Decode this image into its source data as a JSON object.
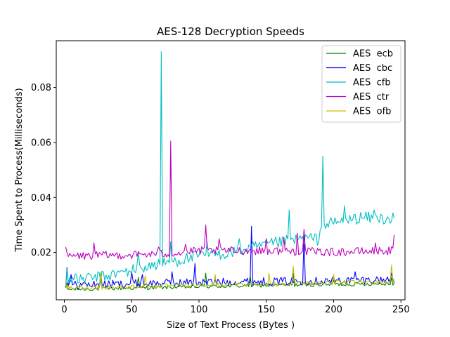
{
  "chart_data": {
    "type": "line",
    "title": "AES-128 Decryption Speeds",
    "xlabel": "Size of Text Process (Bytes )",
    "ylabel": "Time Spent to Process(Milliseconds)",
    "xlim": [
      -6,
      253
    ],
    "ylim": [
      0.0028,
      0.097
    ],
    "xticks": [
      0,
      50,
      100,
      150,
      200,
      250
    ],
    "yticks": [
      0.02,
      0.04,
      0.06,
      0.08
    ],
    "xtick_labels": [
      "0",
      "50",
      "100",
      "150",
      "200",
      "250"
    ],
    "ytick_labels": [
      "0.02",
      "0.04",
      "0.06",
      "0.08"
    ],
    "legend_position": "top-right",
    "grid": false,
    "x_start": 1,
    "x_end": 245,
    "series": [
      {
        "name": "AES  ecb",
        "color": "#008000",
        "base": [
          [
            1,
            0.0065
          ],
          [
            50,
            0.007
          ],
          [
            100,
            0.0075
          ],
          [
            150,
            0.008
          ],
          [
            200,
            0.0083
          ],
          [
            245,
            0.0087
          ]
        ],
        "noise": 0.0007,
        "spikes": [
          [
            2,
            0.009
          ],
          [
            27,
            0.0105
          ],
          [
            55,
            0.011
          ],
          [
            105,
            0.0125
          ],
          [
            138,
            0.0115
          ],
          [
            170,
            0.0125
          ],
          [
            200,
            0.01
          ],
          [
            243,
            0.011
          ]
        ]
      },
      {
        "name": "AES  cbc",
        "color": "#0000ff",
        "base": [
          [
            1,
            0.008
          ],
          [
            50,
            0.0085
          ],
          [
            100,
            0.009
          ],
          [
            150,
            0.0093
          ],
          [
            200,
            0.0096
          ],
          [
            245,
            0.01
          ]
        ],
        "noise": 0.0015,
        "spikes": [
          [
            2,
            0.0145
          ],
          [
            5,
            0.012
          ],
          [
            27,
            0.0125
          ],
          [
            50,
            0.013
          ],
          [
            58,
            0.012
          ],
          [
            80,
            0.013
          ],
          [
            97,
            0.016
          ],
          [
            139,
            0.0295
          ],
          [
            178,
            0.0265
          ],
          [
            216,
            0.013
          ],
          [
            243,
            0.0125
          ]
        ]
      },
      {
        "name": "AES  cfb",
        "color": "#00bfbf",
        "base": [
          [
            1,
            0.0095
          ],
          [
            30,
            0.011
          ],
          [
            60,
            0.0145
          ],
          [
            90,
            0.0175
          ],
          [
            100,
            0.0185
          ],
          [
            120,
            0.0195
          ],
          [
            140,
            0.0215
          ],
          [
            160,
            0.0235
          ],
          [
            180,
            0.025
          ],
          [
            188,
            0.0245
          ],
          [
            192,
            0.03
          ],
          [
            200,
            0.0305
          ],
          [
            220,
            0.0325
          ],
          [
            245,
            0.032
          ]
        ],
        "noise": 0.0022,
        "spikes": [
          [
            2,
            0.014
          ],
          [
            6,
            0.011
          ],
          [
            55,
            0.02
          ],
          [
            72,
            0.093
          ],
          [
            73,
            0.015
          ],
          [
            79,
            0.024
          ],
          [
            106,
            0.024
          ],
          [
            130,
            0.025
          ],
          [
            167,
            0.0355
          ],
          [
            192,
            0.055
          ],
          [
            208,
            0.037
          ],
          [
            230,
            0.0355
          ]
        ]
      },
      {
        "name": "AES  ctr",
        "color": "#bf00bf",
        "base": [
          [
            1,
            0.0185
          ],
          [
            50,
            0.019
          ],
          [
            80,
            0.0195
          ],
          [
            100,
            0.0205
          ],
          [
            150,
            0.0205
          ],
          [
            200,
            0.02
          ],
          [
            245,
            0.0205
          ]
        ],
        "noise": 0.0015,
        "spikes": [
          [
            1,
            0.022
          ],
          [
            22,
            0.0235
          ],
          [
            70,
            0.022
          ],
          [
            79,
            0.0605
          ],
          [
            90,
            0.023
          ],
          [
            105,
            0.03
          ],
          [
            115,
            0.025
          ],
          [
            150,
            0.025
          ],
          [
            163,
            0.0255
          ],
          [
            173,
            0.027
          ],
          [
            178,
            0.0285
          ],
          [
            231,
            0.0235
          ],
          [
            245,
            0.0265
          ]
        ]
      },
      {
        "name": "AES  ofb",
        "color": "#bfbf00",
        "base": [
          [
            1,
            0.007
          ],
          [
            50,
            0.0075
          ],
          [
            100,
            0.008
          ],
          [
            150,
            0.0085
          ],
          [
            200,
            0.009
          ],
          [
            245,
            0.0093
          ]
        ],
        "noise": 0.0008,
        "spikes": [
          [
            1,
            0.009
          ],
          [
            27,
            0.013
          ],
          [
            60,
            0.0115
          ],
          [
            112,
            0.012
          ],
          [
            152,
            0.0125
          ],
          [
            170,
            0.015
          ],
          [
            200,
            0.012
          ],
          [
            243,
            0.0155
          ]
        ]
      }
    ]
  }
}
